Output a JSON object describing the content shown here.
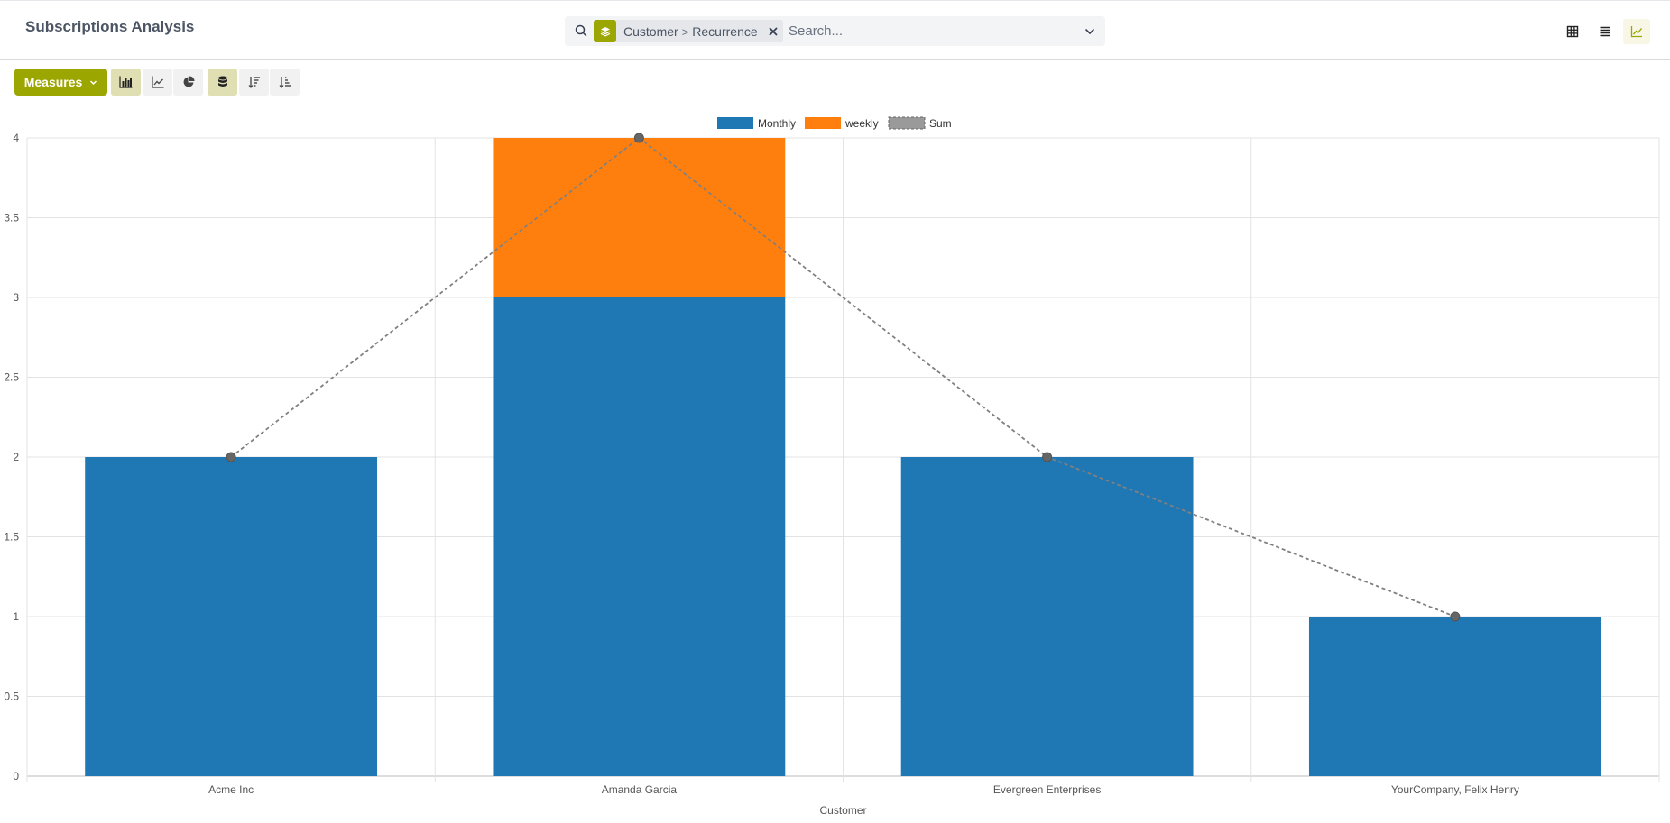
{
  "header": {
    "title": "Subscriptions Analysis"
  },
  "search": {
    "facet_group_by_1": "Customer",
    "facet_separator": ">",
    "facet_group_by_2": "Recurrence",
    "placeholder": "Search...",
    "value": ""
  },
  "view_switcher": {
    "items": [
      {
        "name": "pivot-view",
        "icon": "table-grid-icon",
        "active": false
      },
      {
        "name": "list-view",
        "icon": "list-icon",
        "active": false
      },
      {
        "name": "graph-view",
        "icon": "line-chart-icon",
        "active": true
      }
    ]
  },
  "toolbar": {
    "measures_label": "Measures",
    "buttons": [
      {
        "name": "bar-chart",
        "icon": "bar-chart-icon",
        "active": true
      },
      {
        "name": "line-chart",
        "icon": "line-chart-icon",
        "active": false
      },
      {
        "name": "pie-chart",
        "icon": "pie-chart-icon",
        "active": false
      },
      {
        "name": "stacked",
        "icon": "database-icon",
        "active": true
      },
      {
        "name": "sort-descending",
        "icon": "sort-descending-icon",
        "active": false
      },
      {
        "name": "sort-ascending",
        "icon": "sort-ascending-icon",
        "active": false
      }
    ]
  },
  "colors": {
    "accent": "#9ca600",
    "monthly": "#1f77b4",
    "weekly": "#ff7f0e",
    "sum": "#808080"
  },
  "chart_data": {
    "type": "bar",
    "stacked": true,
    "categories": [
      "Acme Inc",
      "Amanda Garcia",
      "Evergreen Enterprises",
      "YourCompany, Felix Henry"
    ],
    "series": [
      {
        "name": "Monthly",
        "values": [
          2,
          3,
          2,
          1
        ],
        "color": "#1f77b4"
      },
      {
        "name": "weekly",
        "values": [
          0,
          1,
          0,
          0
        ],
        "color": "#ff7f0e"
      }
    ],
    "sum_series": {
      "name": "Sum",
      "values": [
        2,
        4,
        2,
        1
      ],
      "style": "dashed-line",
      "color": "#808080"
    },
    "xlabel": "Customer",
    "ylabel": "",
    "ylim": [
      0,
      4
    ],
    "yticks": [
      "0",
      "0.5",
      "1",
      "1.5",
      "2",
      "2.5",
      "3",
      "3.5",
      "4"
    ],
    "grid": true,
    "legend_position": "top-center"
  }
}
